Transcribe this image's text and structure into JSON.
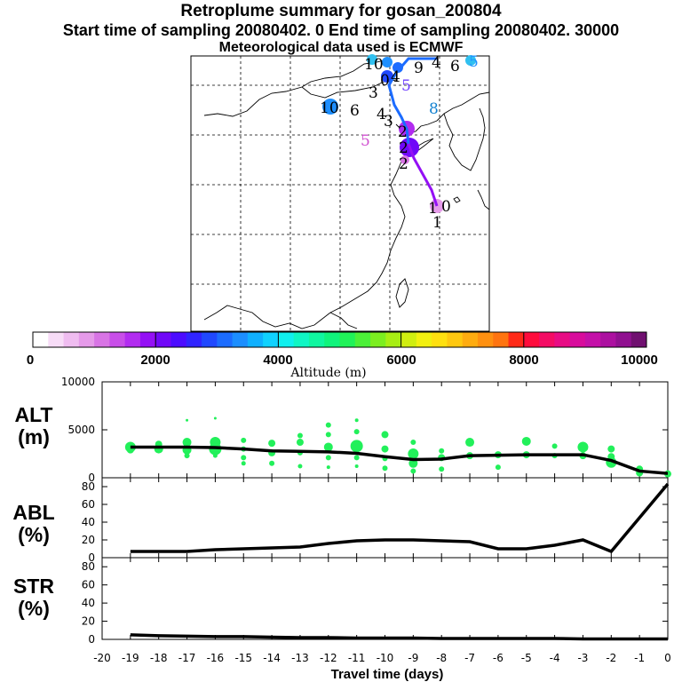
{
  "header": {
    "title": "Retroplume summary for gosan_200804",
    "sampling": "Start time of sampling 20080402.     0     End time of sampling 20080402. 30000",
    "met": "Meteorological data used is ECMWF"
  },
  "colorbar": {
    "label": "Altitude  (m)",
    "ticks": [
      "0",
      "2000",
      "4000",
      "6000",
      "8000",
      "10000"
    ],
    "colors": [
      "#ffffff",
      "#f7dcf7",
      "#efbcf0",
      "#e59ae9",
      "#d874e5",
      "#c84ee8",
      "#b22cf0",
      "#9410f5",
      "#7008f8",
      "#4c0cff",
      "#3024ff",
      "#2048ff",
      "#1c6cff",
      "#1c8eff",
      "#10b0ff",
      "#10d2ff",
      "#10f0ee",
      "#10f6c4",
      "#10f6a0",
      "#10f47c",
      "#20f258",
      "#4cf038",
      "#7cee20",
      "#a8ee14",
      "#d0ee10",
      "#f2f010",
      "#ffe010",
      "#ffc810",
      "#ffac10",
      "#ff9010",
      "#ff7410",
      "#ff2a18",
      "#ff0c3c",
      "#f40c64",
      "#e80c84",
      "#d80c9c",
      "#c410a8",
      "#ac10a0",
      "#901090",
      "#701070"
    ]
  },
  "map": {
    "labels": [
      {
        "text": "10",
        "color": "#000"
      },
      {
        "text": "9",
        "color": "#000"
      },
      {
        "text": "4",
        "color": "#000"
      },
      {
        "text": "6",
        "color": "#000"
      },
      {
        "text": "5",
        "color": "#2090ff"
      },
      {
        "text": "0",
        "color": "#000"
      },
      {
        "text": "4",
        "color": "#000"
      },
      {
        "text": "5",
        "color": "#7040ff"
      },
      {
        "text": "3",
        "color": "#000"
      },
      {
        "text": "10",
        "color": "#000"
      },
      {
        "text": "6",
        "color": "#000"
      },
      {
        "text": "4",
        "color": "#000"
      },
      {
        "text": "3",
        "color": "#000"
      },
      {
        "text": "2",
        "color": "#000"
      },
      {
        "text": "5",
        "color": "#d050d0"
      },
      {
        "text": "8",
        "color": "#1080d0"
      },
      {
        "text": "2",
        "color": "#000"
      },
      {
        "text": "2",
        "color": "#000"
      },
      {
        "text": "1",
        "color": "#000"
      },
      {
        "text": "0",
        "color": "#000"
      },
      {
        "text": "1",
        "color": "#000"
      }
    ]
  },
  "chart_data": [
    {
      "type": "scatter",
      "title": "ALT",
      "ylabel": "ALT (m)",
      "ylim": [
        0,
        10000
      ],
      "yticks": [
        "0",
        "5000",
        "10000"
      ],
      "xlim": [
        -20,
        0
      ],
      "line": {
        "x": [
          -19,
          -18,
          -17,
          -16,
          -15,
          -14,
          -13,
          -12,
          -11,
          -10,
          -9,
          -8,
          -7,
          -6,
          -5,
          -4,
          -3,
          -2,
          -1,
          0
        ],
        "y": [
          3200,
          3200,
          3200,
          3150,
          3000,
          2800,
          2750,
          2700,
          2550,
          2200,
          1900,
          1950,
          2300,
          2350,
          2400,
          2400,
          2400,
          1800,
          700,
          450
        ]
      },
      "points": [
        {
          "x": -19,
          "y": 3200,
          "s": 6
        },
        {
          "x": -19,
          "y": 2900,
          "s": 4
        },
        {
          "x": -18,
          "y": 3500,
          "s": 4
        },
        {
          "x": -18,
          "y": 3000,
          "s": 5
        },
        {
          "x": -17,
          "y": 3700,
          "s": 5
        },
        {
          "x": -17,
          "y": 2900,
          "s": 5
        },
        {
          "x": -17,
          "y": 2300,
          "s": 3
        },
        {
          "x": -17,
          "y": 6000,
          "s": 1.5
        },
        {
          "x": -16,
          "y": 3700,
          "s": 6
        },
        {
          "x": -16,
          "y": 3000,
          "s": 7
        },
        {
          "x": -16,
          "y": 2300,
          "s": 2.5
        },
        {
          "x": -16,
          "y": 6200,
          "s": 1.5
        },
        {
          "x": -15,
          "y": 3900,
          "s": 3
        },
        {
          "x": -15,
          "y": 3000,
          "s": 3
        },
        {
          "x": -15,
          "y": 2100,
          "s": 3
        },
        {
          "x": -15,
          "y": 1500,
          "s": 2.5
        },
        {
          "x": -14,
          "y": 3600,
          "s": 4
        },
        {
          "x": -14,
          "y": 2600,
          "s": 4
        },
        {
          "x": -14,
          "y": 1500,
          "s": 3
        },
        {
          "x": -13,
          "y": 4400,
          "s": 3
        },
        {
          "x": -13,
          "y": 3700,
          "s": 4
        },
        {
          "x": -13,
          "y": 2600,
          "s": 3
        },
        {
          "x": -13,
          "y": 1200,
          "s": 2.5
        },
        {
          "x": -12,
          "y": 5500,
          "s": 3
        },
        {
          "x": -12,
          "y": 4500,
          "s": 3
        },
        {
          "x": -12,
          "y": 3200,
          "s": 5
        },
        {
          "x": -12,
          "y": 2100,
          "s": 3
        },
        {
          "x": -12,
          "y": 1100,
          "s": 2
        },
        {
          "x": -11,
          "y": 6000,
          "s": 2
        },
        {
          "x": -11,
          "y": 4800,
          "s": 3
        },
        {
          "x": -11,
          "y": 3300,
          "s": 7
        },
        {
          "x": -11,
          "y": 2100,
          "s": 3
        },
        {
          "x": -11,
          "y": 1200,
          "s": 2
        },
        {
          "x": -10,
          "y": 4500,
          "s": 4
        },
        {
          "x": -10,
          "y": 3000,
          "s": 4
        },
        {
          "x": -10,
          "y": 2000,
          "s": 3
        },
        {
          "x": -10,
          "y": 1000,
          "s": 3
        },
        {
          "x": -9,
          "y": 3700,
          "s": 3
        },
        {
          "x": -9,
          "y": 2500,
          "s": 6
        },
        {
          "x": -9,
          "y": 1500,
          "s": 5
        },
        {
          "x": -9,
          "y": 700,
          "s": 3
        },
        {
          "x": -8,
          "y": 2800,
          "s": 3
        },
        {
          "x": -8,
          "y": 2100,
          "s": 4
        },
        {
          "x": -8,
          "y": 900,
          "s": 3
        },
        {
          "x": -7,
          "y": 3700,
          "s": 5
        },
        {
          "x": -7,
          "y": 2300,
          "s": 4
        },
        {
          "x": -6,
          "y": 2400,
          "s": 4
        },
        {
          "x": -6,
          "y": 1100,
          "s": 3
        },
        {
          "x": -5,
          "y": 3800,
          "s": 5
        },
        {
          "x": -5,
          "y": 2400,
          "s": 4
        },
        {
          "x": -4,
          "y": 3300,
          "s": 3
        },
        {
          "x": -4,
          "y": 2300,
          "s": 3
        },
        {
          "x": -3,
          "y": 3200,
          "s": 6
        },
        {
          "x": -3,
          "y": 2300,
          "s": 4
        },
        {
          "x": -2,
          "y": 3000,
          "s": 4
        },
        {
          "x": -2,
          "y": 2200,
          "s": 4
        },
        {
          "x": -2,
          "y": 1600,
          "s": 6
        },
        {
          "x": -1,
          "y": 900,
          "s": 4
        },
        {
          "x": -1,
          "y": 500,
          "s": 4
        },
        {
          "x": 0,
          "y": 400,
          "s": 4
        }
      ]
    },
    {
      "type": "line",
      "title": "ABL",
      "ylabel": "ABL (%)",
      "ylim": [
        0,
        90
      ],
      "yticks": [
        "0",
        "20",
        "40",
        "60",
        "80"
      ],
      "xlim": [
        -20,
        0
      ],
      "x": [
        -19,
        -18,
        -17,
        -16,
        -15,
        -14,
        -13,
        -12,
        -11,
        -10,
        -9,
        -8,
        -7,
        -6,
        -5,
        -4,
        -3,
        -2,
        -1,
        0
      ],
      "y": [
        7,
        7,
        7,
        9,
        10,
        11,
        12,
        16,
        19,
        20,
        20,
        19,
        18,
        10,
        10,
        14,
        20,
        7,
        45,
        83
      ]
    },
    {
      "type": "line",
      "title": "STR",
      "ylabel": "STR (%)",
      "ylim": [
        0,
        90
      ],
      "yticks": [
        "0",
        "20",
        "40",
        "60",
        "80"
      ],
      "xlim": [
        -20,
        0
      ],
      "xlabel": "Travel time (days)",
      "xticks": [
        "-20",
        "-19",
        "-18",
        "-17",
        "-16",
        "-15",
        "-14",
        "-13",
        "-12",
        "-11",
        "-10",
        "-9",
        "-8",
        "-7",
        "-6",
        "-5",
        "-4",
        "-3",
        "-2",
        "-1",
        "0"
      ],
      "x": [
        -19,
        -18,
        -17,
        -16,
        -15,
        -14,
        -13,
        -12,
        -11,
        -10,
        -9,
        -8,
        -7,
        -6,
        -5,
        -4,
        -3,
        -2,
        -1,
        0
      ],
      "y": [
        5,
        4,
        3.5,
        3,
        3,
        2.5,
        2,
        2,
        1.5,
        1.5,
        1.5,
        1,
        1,
        1,
        1,
        1,
        0.5,
        0.5,
        0.5,
        0.5
      ]
    }
  ],
  "panels": {
    "alt": {
      "label1": "ALT",
      "label2": "(m)"
    },
    "abl": {
      "label1": "ABL",
      "label2": "(%)"
    },
    "str": {
      "label1": "STR",
      "label2": "(%)"
    }
  }
}
